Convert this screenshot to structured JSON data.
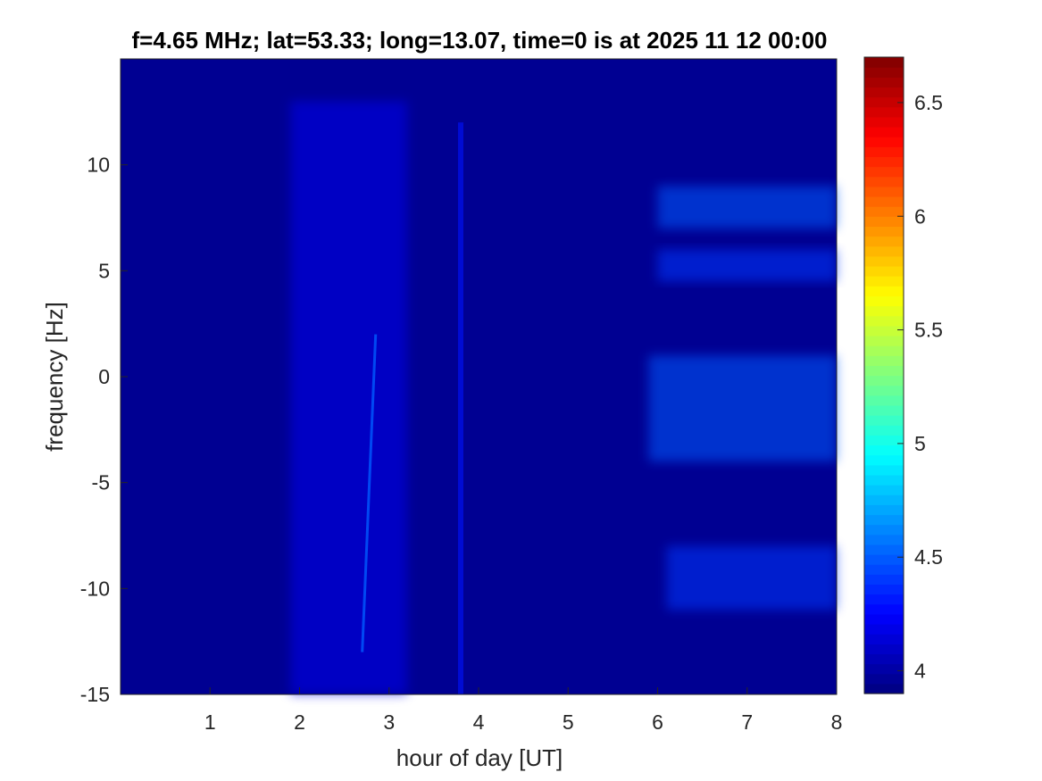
{
  "chart_data": {
    "type": "heatmap",
    "title": "f=4.65 MHz;  lat=53.33; long=13.07, time=0 is at 2025 11 12 00:00",
    "xlabel": "hour of day [UT]",
    "ylabel": "frequency [Hz]",
    "xlim": [
      0,
      8
    ],
    "ylim": [
      -15,
      15
    ],
    "x_ticks": [
      1,
      2,
      3,
      4,
      5,
      6,
      7,
      8
    ],
    "x_tick_labels": [
      "1",
      "2",
      "3",
      "4",
      "5",
      "6",
      "7",
      "8"
    ],
    "y_ticks": [
      -15,
      -10,
      -5,
      0,
      5,
      10
    ],
    "y_tick_labels": [
      "-15",
      "-10",
      "-5",
      "0",
      "5",
      "10"
    ],
    "grid": false,
    "colormap": "jet",
    "colorbar": {
      "limits": [
        3.9,
        6.7
      ],
      "ticks": [
        4,
        4.5,
        5,
        5.5,
        6,
        6.5
      ],
      "tick_labels": [
        "4",
        "4.5",
        "5",
        "5.5",
        "6",
        "6.5"
      ]
    },
    "background_level": 3.95,
    "features": [
      {
        "name": "diffuse band",
        "x_range": [
          1.9,
          3.2
        ],
        "y_range": [
          -15,
          13
        ],
        "level": 4.2
      },
      {
        "name": "doppler streak",
        "x_from": 2.7,
        "y_from": -13,
        "x_to": 2.85,
        "y_to": 2,
        "level": 4.5
      },
      {
        "name": "vertical stripe",
        "x": 3.8,
        "y_range": [
          -15,
          12
        ],
        "level": 4.3
      },
      {
        "name": "spread echo upper",
        "x_range": [
          6.0,
          8.0
        ],
        "y_range": [
          7,
          9
        ],
        "level": 4.5
      },
      {
        "name": "spread echo mid-upper",
        "x_range": [
          6.0,
          8.0
        ],
        "y_range": [
          4.5,
          6
        ],
        "level": 4.4
      },
      {
        "name": "spread echo center",
        "x_range": [
          5.9,
          8.0
        ],
        "y_range": [
          -4,
          1
        ],
        "level": 4.5
      },
      {
        "name": "spread echo lower",
        "x_range": [
          6.1,
          8.0
        ],
        "y_range": [
          -11,
          -8
        ],
        "level": 4.4
      }
    ]
  }
}
